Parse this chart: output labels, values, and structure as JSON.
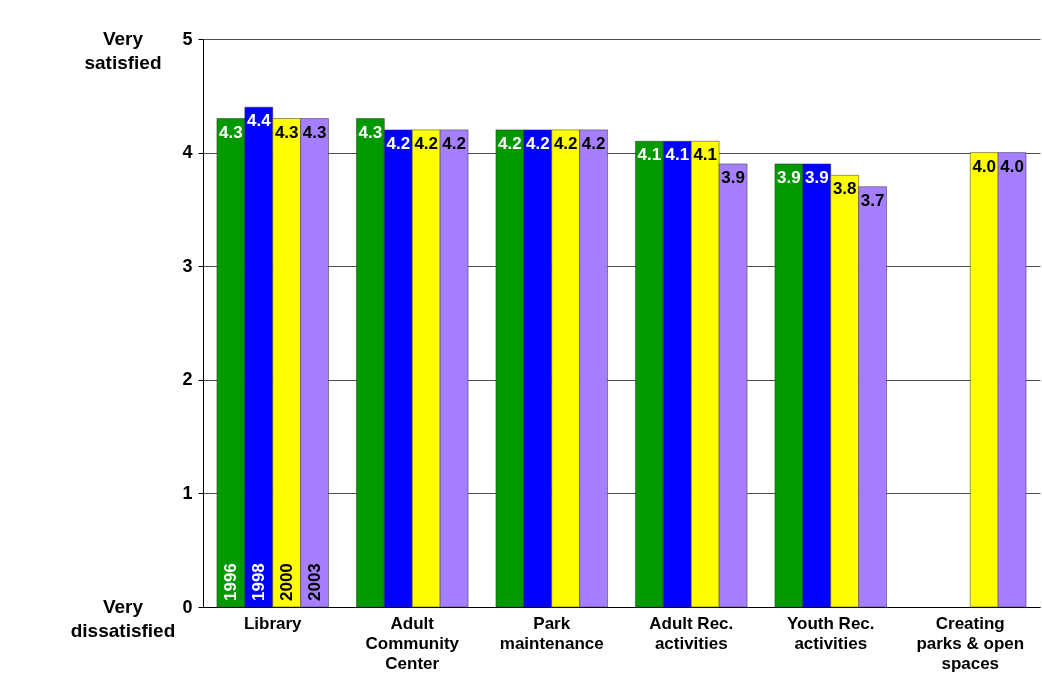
{
  "chart_data": {
    "type": "bar",
    "categories": [
      "Library",
      "Adult Community Center",
      "Park maintenance",
      "Adult Rec. activities",
      "Youth Rec. activities",
      "Creating parks & open spaces"
    ],
    "series": [
      {
        "name": "1996",
        "color": "#009900",
        "values": [
          4.3,
          4.3,
          4.2,
          4.1,
          3.9,
          null
        ],
        "value_labels": [
          "4.3",
          "4.3",
          "4.2",
          "4.1",
          "3.9",
          null
        ]
      },
      {
        "name": "1998",
        "color": "#0000ff",
        "values": [
          4.4,
          4.2,
          4.2,
          4.1,
          3.9,
          null
        ],
        "value_labels": [
          "4.4",
          "4.2",
          "4.2",
          "4.1",
          "3.9",
          null
        ]
      },
      {
        "name": "2000",
        "color": "#ffff00",
        "values": [
          4.3,
          4.2,
          4.2,
          4.1,
          3.8,
          4.0
        ],
        "value_labels": [
          "4.3",
          "4.2",
          "4.2",
          "4.1",
          "3.8",
          "4.0"
        ]
      },
      {
        "name": "2003",
        "color": "#a57fff",
        "values": [
          4.3,
          4.2,
          4.2,
          3.9,
          3.7,
          4.0
        ],
        "value_labels": [
          "4.3",
          "4.2",
          "4.2",
          "3.9",
          "3.7",
          "4.0"
        ]
      }
    ],
    "ylim": [
      0,
      5
    ],
    "yticks": [
      0,
      1,
      2,
      3,
      4,
      5
    ],
    "grid": "y",
    "legend": false,
    "annotations": [
      "Very satisfied",
      "Very dissatisfied"
    ]
  }
}
